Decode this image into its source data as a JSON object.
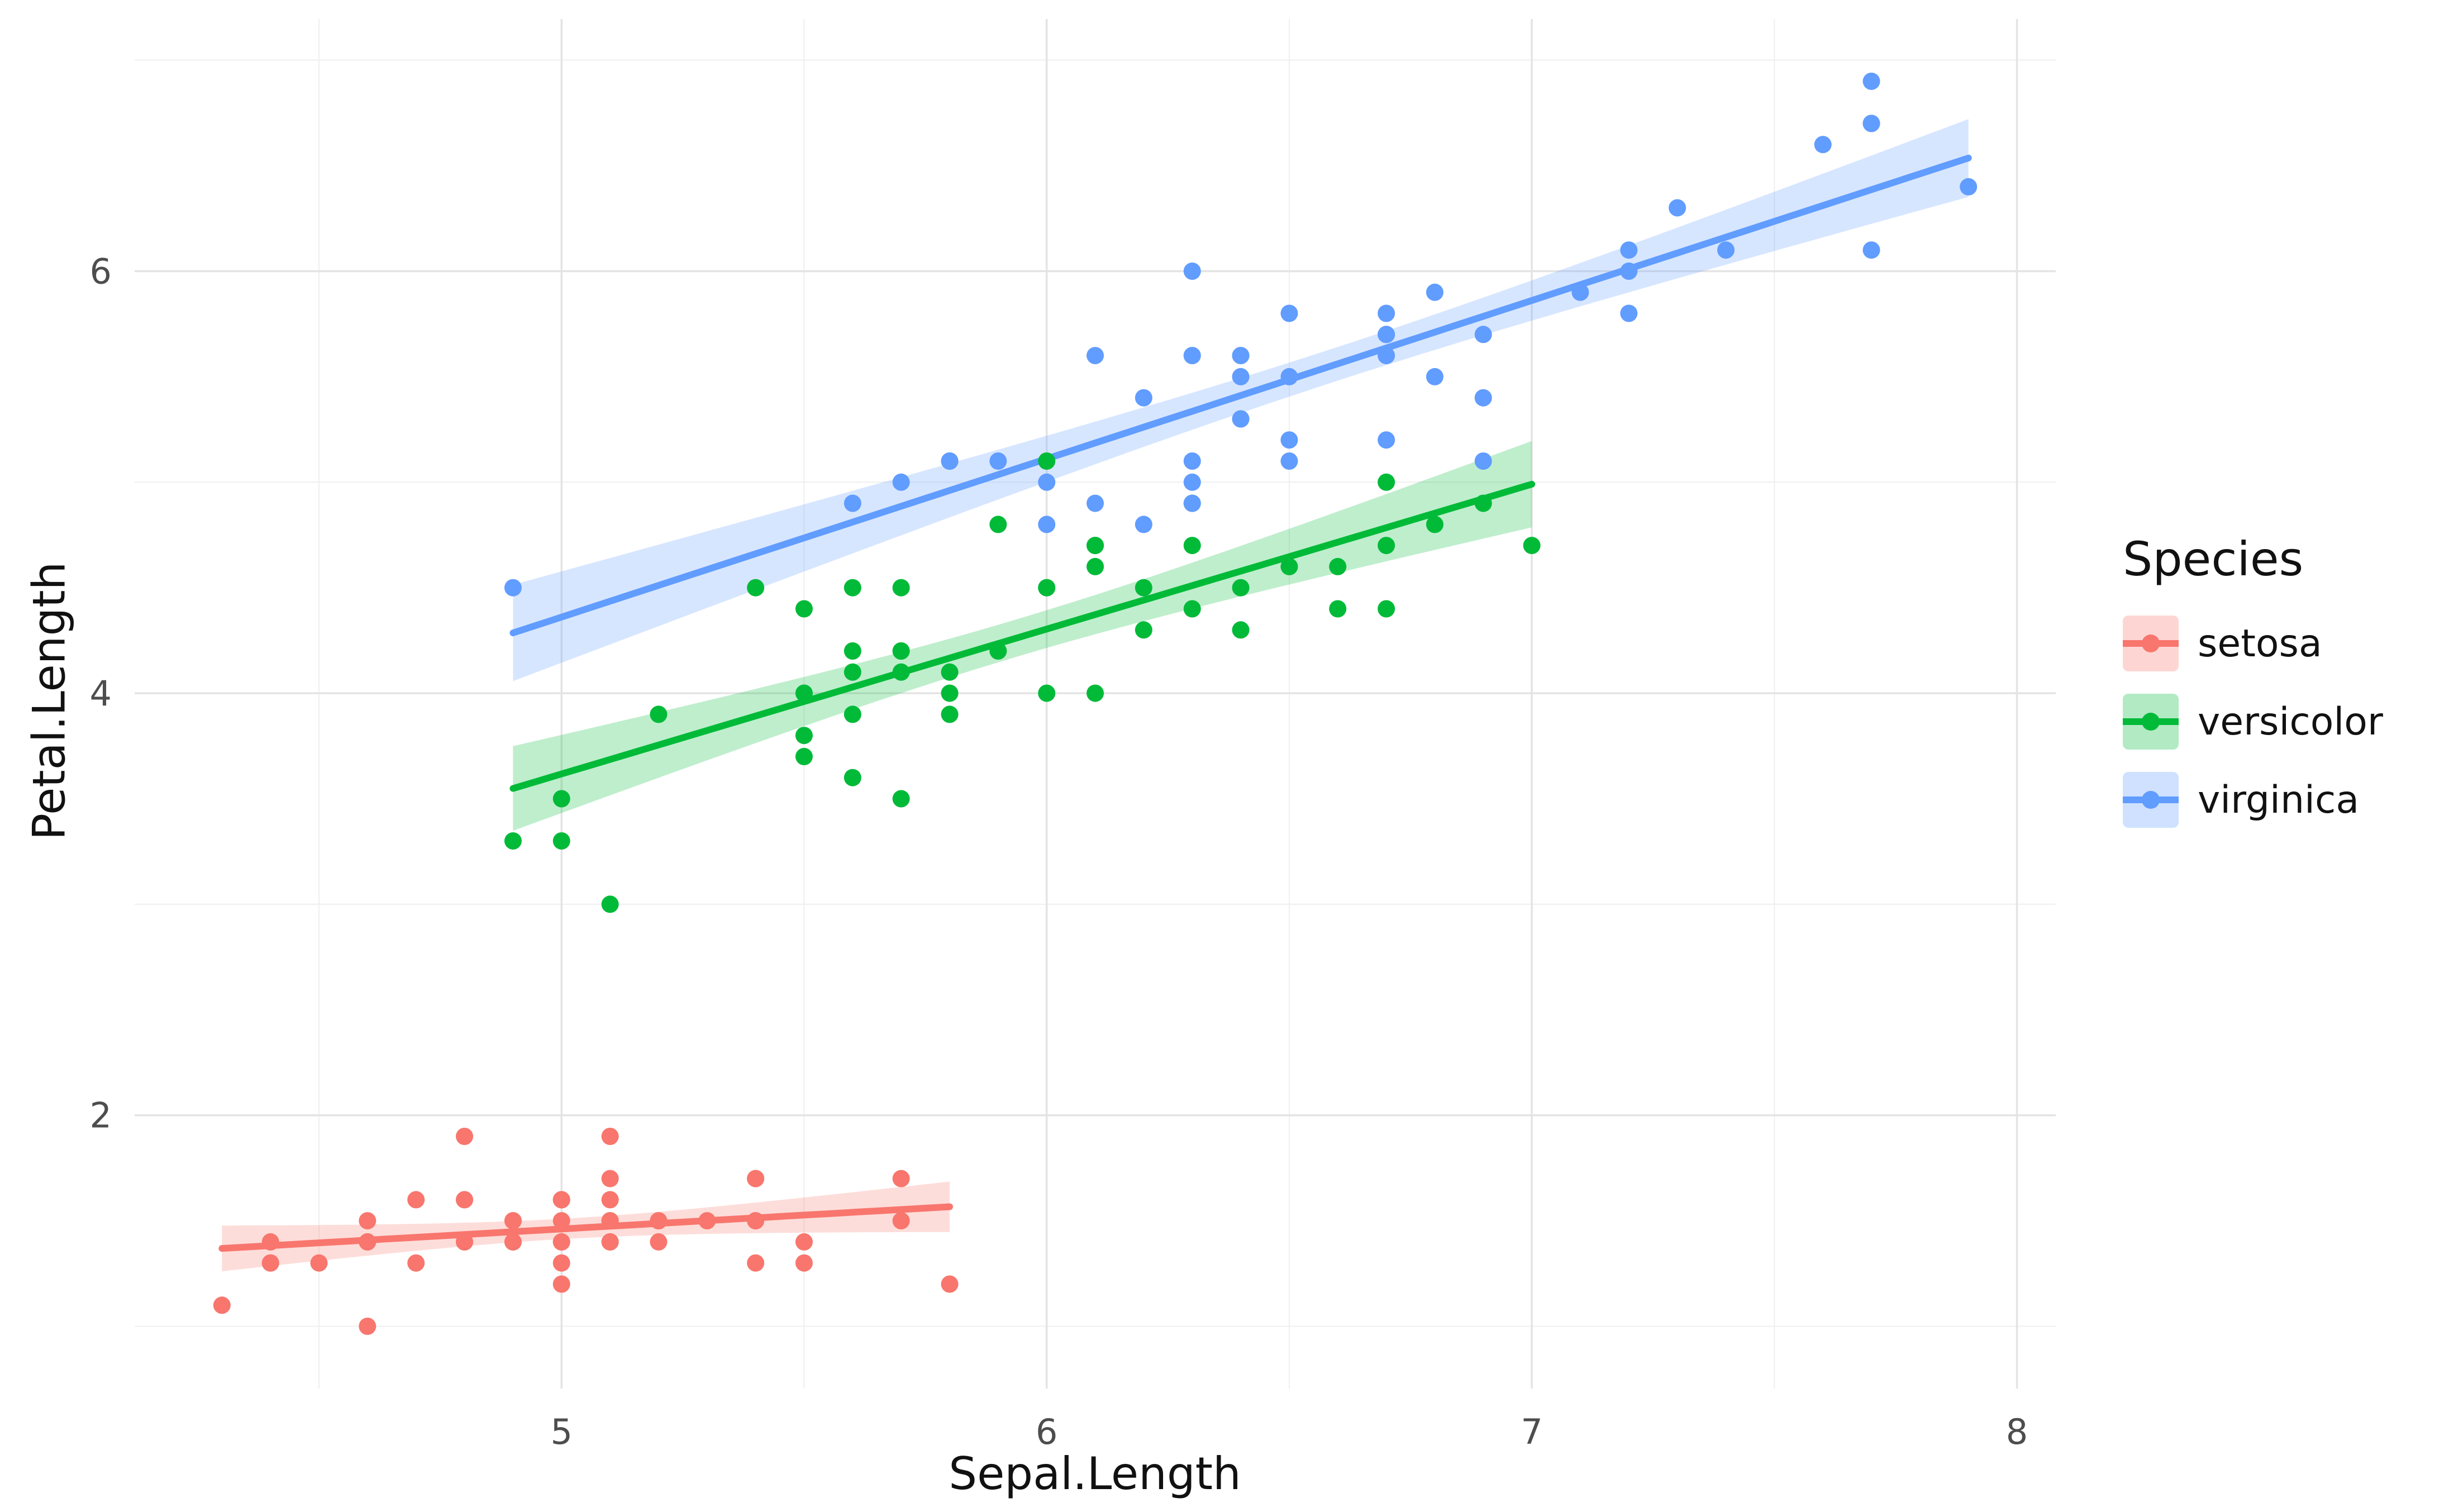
{
  "chart_data": {
    "type": "scatter",
    "title": "",
    "xlabel": "Sepal.Length",
    "ylabel": "Petal.Length",
    "xlim": [
      4.12,
      8.08
    ],
    "ylim": [
      0.705,
      7.195
    ],
    "x_ticks": [
      5,
      6,
      7,
      8
    ],
    "y_ticks": [
      2,
      4,
      6
    ],
    "x_minor": [
      4.5,
      5.5,
      6.5,
      7.5
    ],
    "y_minor": [
      1,
      3,
      5,
      7
    ],
    "grid": true,
    "legend": {
      "title": "Species",
      "position": "right"
    },
    "smooth": {
      "method": "lm",
      "ci_level": 0.95
    },
    "colors": {
      "setosa": "#F8766D",
      "versicolor": "#00BA38",
      "virginica": "#619CFF"
    },
    "series": [
      {
        "name": "setosa",
        "color": "#F8766D",
        "points": [
          [
            5.1,
            1.4
          ],
          [
            4.9,
            1.4
          ],
          [
            4.7,
            1.3
          ],
          [
            4.6,
            1.5
          ],
          [
            5.0,
            1.4
          ],
          [
            5.4,
            1.7
          ],
          [
            4.6,
            1.4
          ],
          [
            5.0,
            1.5
          ],
          [
            4.4,
            1.4
          ],
          [
            4.9,
            1.5
          ],
          [
            5.4,
            1.5
          ],
          [
            4.8,
            1.6
          ],
          [
            4.8,
            1.4
          ],
          [
            4.3,
            1.1
          ],
          [
            5.8,
            1.2
          ],
          [
            5.7,
            1.5
          ],
          [
            5.4,
            1.3
          ],
          [
            5.1,
            1.4
          ],
          [
            5.7,
            1.7
          ],
          [
            5.1,
            1.5
          ],
          [
            5.4,
            1.7
          ],
          [
            5.1,
            1.5
          ],
          [
            4.6,
            1.0
          ],
          [
            5.1,
            1.7
          ],
          [
            4.8,
            1.9
          ],
          [
            5.0,
            1.6
          ],
          [
            5.0,
            1.6
          ],
          [
            5.2,
            1.5
          ],
          [
            5.2,
            1.4
          ],
          [
            4.7,
            1.6
          ],
          [
            4.8,
            1.6
          ],
          [
            5.4,
            1.5
          ],
          [
            5.2,
            1.5
          ],
          [
            5.5,
            1.4
          ],
          [
            4.9,
            1.5
          ],
          [
            5.0,
            1.2
          ],
          [
            5.5,
            1.3
          ],
          [
            4.9,
            1.4
          ],
          [
            4.4,
            1.3
          ],
          [
            5.1,
            1.5
          ],
          [
            5.0,
            1.3
          ],
          [
            4.5,
            1.3
          ],
          [
            4.4,
            1.3
          ],
          [
            5.0,
            1.6
          ],
          [
            5.1,
            1.9
          ],
          [
            4.8,
            1.4
          ],
          [
            5.1,
            1.6
          ],
          [
            4.6,
            1.4
          ],
          [
            5.3,
            1.5
          ],
          [
            5.0,
            1.4
          ]
        ]
      },
      {
        "name": "versicolor",
        "color": "#00BA38",
        "points": [
          [
            7.0,
            4.7
          ],
          [
            6.4,
            4.5
          ],
          [
            6.9,
            4.9
          ],
          [
            5.5,
            4.0
          ],
          [
            6.5,
            4.6
          ],
          [
            5.7,
            4.5
          ],
          [
            6.3,
            4.7
          ],
          [
            4.9,
            3.3
          ],
          [
            6.6,
            4.6
          ],
          [
            5.2,
            3.9
          ],
          [
            5.0,
            3.5
          ],
          [
            5.9,
            4.2
          ],
          [
            6.0,
            4.0
          ],
          [
            6.1,
            4.7
          ],
          [
            5.6,
            3.6
          ],
          [
            6.7,
            4.4
          ],
          [
            5.6,
            4.5
          ],
          [
            5.8,
            4.1
          ],
          [
            6.2,
            4.5
          ],
          [
            5.6,
            3.9
          ],
          [
            5.9,
            4.8
          ],
          [
            6.1,
            4.0
          ],
          [
            6.3,
            4.9
          ],
          [
            6.1,
            4.7
          ],
          [
            6.4,
            4.3
          ],
          [
            6.6,
            4.4
          ],
          [
            6.8,
            4.8
          ],
          [
            6.7,
            5.0
          ],
          [
            6.0,
            4.5
          ],
          [
            5.7,
            3.5
          ],
          [
            5.5,
            3.8
          ],
          [
            5.5,
            3.7
          ],
          [
            5.8,
            3.9
          ],
          [
            6.0,
            5.1
          ],
          [
            5.4,
            4.5
          ],
          [
            6.0,
            4.5
          ],
          [
            6.7,
            4.7
          ],
          [
            6.3,
            4.4
          ],
          [
            5.6,
            4.1
          ],
          [
            5.5,
            4.0
          ],
          [
            5.5,
            4.4
          ],
          [
            6.1,
            4.6
          ],
          [
            5.8,
            4.0
          ],
          [
            5.0,
            3.3
          ],
          [
            5.6,
            4.2
          ],
          [
            5.7,
            4.2
          ],
          [
            5.7,
            4.2
          ],
          [
            6.2,
            4.3
          ],
          [
            5.1,
            3.0
          ],
          [
            5.7,
            4.1
          ]
        ]
      },
      {
        "name": "virginica",
        "color": "#619CFF",
        "points": [
          [
            6.3,
            6.0
          ],
          [
            5.8,
            5.1
          ],
          [
            7.1,
            5.9
          ],
          [
            6.3,
            5.6
          ],
          [
            6.5,
            5.8
          ],
          [
            7.6,
            6.6
          ],
          [
            4.9,
            4.5
          ],
          [
            7.3,
            6.3
          ],
          [
            6.7,
            5.8
          ],
          [
            7.2,
            6.1
          ],
          [
            6.5,
            5.1
          ],
          [
            6.4,
            5.3
          ],
          [
            6.8,
            5.5
          ],
          [
            5.7,
            5.0
          ],
          [
            5.8,
            5.1
          ],
          [
            6.4,
            5.3
          ],
          [
            6.5,
            5.5
          ],
          [
            7.7,
            6.7
          ],
          [
            7.7,
            6.9
          ],
          [
            6.0,
            5.0
          ],
          [
            6.9,
            5.7
          ],
          [
            5.6,
            4.9
          ],
          [
            7.7,
            6.7
          ],
          [
            6.3,
            4.9
          ],
          [
            6.7,
            5.7
          ],
          [
            7.2,
            6.0
          ],
          [
            6.2,
            4.8
          ],
          [
            6.1,
            4.9
          ],
          [
            6.4,
            5.6
          ],
          [
            7.2,
            5.8
          ],
          [
            7.4,
            6.1
          ],
          [
            7.9,
            6.4
          ],
          [
            6.4,
            5.6
          ],
          [
            6.3,
            5.1
          ],
          [
            6.1,
            5.6
          ],
          [
            7.7,
            6.1
          ],
          [
            6.3,
            5.6
          ],
          [
            6.4,
            5.5
          ],
          [
            6.0,
            4.8
          ],
          [
            6.9,
            5.4
          ],
          [
            6.7,
            5.6
          ],
          [
            6.9,
            5.1
          ],
          [
            5.8,
            5.1
          ],
          [
            6.8,
            5.9
          ],
          [
            6.7,
            5.7
          ],
          [
            6.7,
            5.2
          ],
          [
            6.3,
            5.0
          ],
          [
            6.5,
            5.2
          ],
          [
            6.2,
            5.4
          ],
          [
            5.9,
            5.1
          ]
        ]
      }
    ],
    "grid_color_major": "#E4E4E4",
    "grid_color_minor": "#EFEFEF"
  }
}
